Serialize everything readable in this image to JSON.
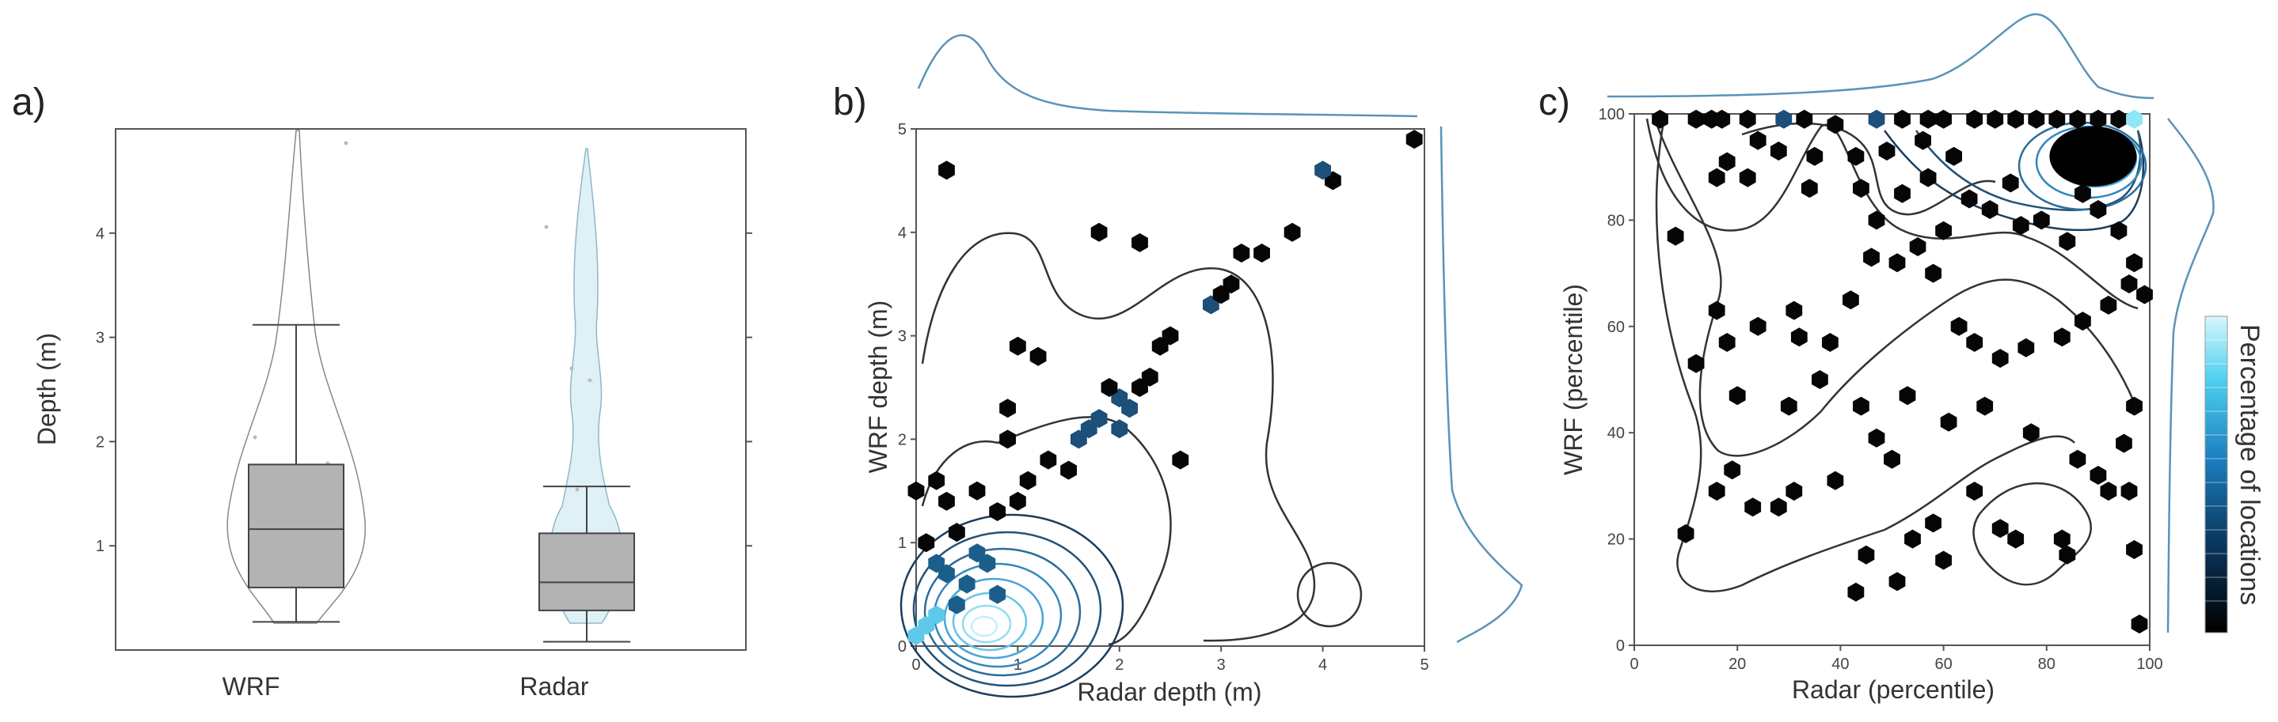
{
  "chart_data": [
    {
      "panel": "a)",
      "type": "box",
      "ylabel": "Depth (m)",
      "categories": [
        "WRF",
        "Radar"
      ],
      "ylim": [
        0,
        5
      ],
      "yticks": [
        1,
        2,
        3,
        4
      ],
      "boxes": [
        {
          "name": "WRF",
          "whisker_low": 0.27,
          "q1": 0.6,
          "median": 1.16,
          "q3": 1.78,
          "whisker_high": 3.12
        },
        {
          "name": "Radar",
          "whisker_low": 0.08,
          "q1": 0.38,
          "median": 0.65,
          "q3": 1.12,
          "whisker_high": 1.57
        }
      ]
    },
    {
      "panel": "b)",
      "type": "scatter",
      "xlabel": "Radar depth (m)",
      "ylabel": "WRF depth (m)",
      "xlim": [
        0,
        5
      ],
      "ylim": [
        0,
        5
      ],
      "xticks": [
        0,
        1,
        2,
        3,
        4,
        5
      ],
      "yticks": [
        0,
        1,
        2,
        3,
        4,
        5
      ],
      "points": [
        [
          0.3,
          4.6
        ],
        [
          1.8,
          4.0
        ],
        [
          2.2,
          3.9
        ],
        [
          3.4,
          3.8
        ],
        [
          3.2,
          3.8
        ],
        [
          3.7,
          4.0
        ],
        [
          4.1,
          4.5
        ],
        [
          4.0,
          4.6
        ],
        [
          4.9,
          4.9
        ],
        [
          2.9,
          3.3
        ],
        [
          3.1,
          3.5
        ],
        [
          3.0,
          3.4
        ],
        [
          2.4,
          2.9
        ],
        [
          2.5,
          3.0
        ],
        [
          2.3,
          2.6
        ],
        [
          2.2,
          2.5
        ],
        [
          2.0,
          2.4
        ],
        [
          1.8,
          2.2
        ],
        [
          1.7,
          2.1
        ],
        [
          1.6,
          2.0
        ],
        [
          2.1,
          2.3
        ],
        [
          1.9,
          2.5
        ],
        [
          2.0,
          2.1
        ],
        [
          1.5,
          1.7
        ],
        [
          1.3,
          1.8
        ],
        [
          1.0,
          2.9
        ],
        [
          1.2,
          2.8
        ],
        [
          0.9,
          2.3
        ],
        [
          0.9,
          2.0
        ],
        [
          2.6,
          1.8
        ],
        [
          1.1,
          1.6
        ],
        [
          1.0,
          1.4
        ],
        [
          0.8,
          1.3
        ],
        [
          0.6,
          1.5
        ],
        [
          0.4,
          1.1
        ],
        [
          0.3,
          1.4
        ],
        [
          0.2,
          1.6
        ],
        [
          0.0,
          1.5
        ],
        [
          0.1,
          1.0
        ],
        [
          0.2,
          0.8
        ],
        [
          0.5,
          0.6
        ],
        [
          0.7,
          0.8
        ],
        [
          0.4,
          0.4
        ],
        [
          0.2,
          0.3
        ],
        [
          0.1,
          0.2
        ],
        [
          0.0,
          0.1
        ],
        [
          0.6,
          0.9
        ],
        [
          0.8,
          0.5
        ],
        [
          0.3,
          0.7
        ]
      ]
    },
    {
      "panel": "c)",
      "type": "scatter",
      "xlabel": "Radar (percentile)",
      "ylabel": "WRF (percentile)",
      "xlim": [
        0,
        100
      ],
      "ylim": [
        0,
        100
      ],
      "xticks": [
        0,
        20,
        40,
        60,
        80,
        100
      ],
      "yticks": [
        0,
        20,
        40,
        60,
        80,
        100
      ],
      "colorbar_label": "Percentage of locations",
      "points": [
        [
          5,
          99
        ],
        [
          12,
          99
        ],
        [
          15,
          99
        ],
        [
          17,
          99
        ],
        [
          22,
          99
        ],
        [
          29,
          99
        ],
        [
          33,
          99
        ],
        [
          47,
          99
        ],
        [
          52,
          99
        ],
        [
          57,
          99
        ],
        [
          60,
          99
        ],
        [
          66,
          99
        ],
        [
          70,
          99
        ],
        [
          74,
          99
        ],
        [
          78,
          99
        ],
        [
          82,
          99
        ],
        [
          86,
          99
        ],
        [
          90,
          99
        ],
        [
          94,
          99
        ],
        [
          97,
          99
        ],
        [
          8,
          77
        ],
        [
          16,
          88
        ],
        [
          18,
          91
        ],
        [
          22,
          88
        ],
        [
          24,
          95
        ],
        [
          28,
          93
        ],
        [
          34,
          86
        ],
        [
          35,
          92
        ],
        [
          39,
          98
        ],
        [
          43,
          92
        ],
        [
          44,
          86
        ],
        [
          47,
          80
        ],
        [
          49,
          93
        ],
        [
          52,
          85
        ],
        [
          56,
          95
        ],
        [
          57,
          88
        ],
        [
          60,
          78
        ],
        [
          62,
          92
        ],
        [
          65,
          84
        ],
        [
          69,
          82
        ],
        [
          73,
          87
        ],
        [
          75,
          79
        ],
        [
          79,
          80
        ],
        [
          84,
          76
        ],
        [
          87,
          85
        ],
        [
          90,
          82
        ],
        [
          94,
          78
        ],
        [
          97,
          72
        ],
        [
          99,
          66
        ],
        [
          16,
          63
        ],
        [
          18,
          57
        ],
        [
          24,
          60
        ],
        [
          31,
          63
        ],
        [
          32,
          58
        ],
        [
          38,
          57
        ],
        [
          42,
          65
        ],
        [
          46,
          73
        ],
        [
          51,
          72
        ],
        [
          55,
          75
        ],
        [
          58,
          70
        ],
        [
          63,
          60
        ],
        [
          66,
          57
        ],
        [
          71,
          54
        ],
        [
          76,
          56
        ],
        [
          83,
          58
        ],
        [
          87,
          61
        ],
        [
          92,
          64
        ],
        [
          96,
          68
        ],
        [
          12,
          53
        ],
        [
          20,
          47
        ],
        [
          30,
          45
        ],
        [
          36,
          50
        ],
        [
          44,
          45
        ],
        [
          47,
          39
        ],
        [
          50,
          35
        ],
        [
          53,
          47
        ],
        [
          61,
          42
        ],
        [
          68,
          45
        ],
        [
          77,
          40
        ],
        [
          86,
          35
        ],
        [
          90,
          32
        ],
        [
          95,
          38
        ],
        [
          97,
          45
        ],
        [
          16,
          29
        ],
        [
          19,
          33
        ],
        [
          23,
          26
        ],
        [
          28,
          26
        ],
        [
          31,
          29
        ],
        [
          39,
          31
        ],
        [
          45,
          17
        ],
        [
          54,
          20
        ],
        [
          58,
          23
        ],
        [
          60,
          16
        ],
        [
          66,
          29
        ],
        [
          71,
          22
        ],
        [
          74,
          20
        ],
        [
          83,
          20
        ],
        [
          84,
          17
        ],
        [
          92,
          29
        ],
        [
          96,
          29
        ],
        [
          97,
          18
        ],
        [
          10,
          21
        ],
        [
          43,
          10
        ],
        [
          51,
          12
        ],
        [
          98,
          4
        ]
      ]
    }
  ]
}
